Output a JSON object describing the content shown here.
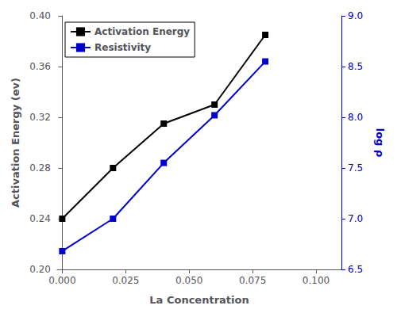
{
  "chart_data": {
    "type": "line",
    "x": [
      0.0,
      0.02,
      0.04,
      0.06,
      0.08
    ],
    "xlabel": "La Concentration",
    "ylabel": "Activation Energy (ev)",
    "y2label": "log ρ",
    "xlim": [
      -0.002,
      0.11
    ],
    "xticks": [
      {
        "value": 0.0,
        "label": "0.000"
      },
      {
        "value": 0.025,
        "label": "0.025"
      },
      {
        "value": 0.05,
        "label": "0.050"
      },
      {
        "value": 0.075,
        "label": "0.075"
      },
      {
        "value": 0.1,
        "label": "0.100"
      }
    ],
    "ylim": [
      0.2,
      0.4
    ],
    "yticks": [
      {
        "value": 0.2,
        "label": "0.20"
      },
      0.24,
      0.28,
      0.32,
      0.36,
      {
        "value": 0.4,
        "label": "0.40"
      }
    ],
    "y2lim": [
      6.5,
      9.0
    ],
    "y2ticks": [
      6.5,
      {
        "value": 7.0,
        "label": "7.0"
      },
      7.5,
      {
        "value": 8.0,
        "label": "8.0"
      },
      8.5,
      {
        "value": 9.0,
        "label": "9.0"
      }
    ],
    "series": [
      {
        "name": "Activation Energy",
        "color": "#000000",
        "marker": "square",
        "line_style": "solid",
        "values": [
          0.24,
          0.28,
          0.315,
          0.33,
          0.385
        ]
      },
      {
        "name": "Resistivity",
        "color": "#0000cc",
        "marker": "square",
        "line_style": "solid",
        "axis": "y2",
        "values": [
          6.68,
          7.0,
          7.55,
          8.02,
          8.55
        ]
      }
    ],
    "legend": "upper left",
    "grid": false
  }
}
